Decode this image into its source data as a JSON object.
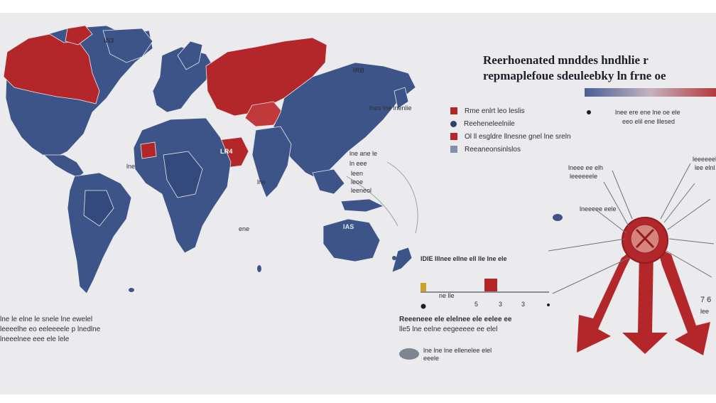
{
  "map": {
    "region_labels": [
      "IN3",
      "IRB",
      "LR4",
      "IAS"
    ],
    "colors": {
      "ocean": "#ebebed",
      "land_blue": "#3d5488",
      "land_red": "#b3272a",
      "text": "#1b1f2a"
    }
  },
  "title": {
    "line1": "Reerhoenated mnddes hndhlie r",
    "line2": "repmaplefoue sdeuleebky ln frne oe"
  },
  "gradient_scale": {
    "from_color": "#4a5f97",
    "to_color": "#b43a3c"
  },
  "legend": {
    "items": [
      {
        "label": "Rme enlrt leo leslis",
        "color": "#b3272a",
        "shape": "square"
      },
      {
        "label": "Reeheneleelnile",
        "color": "#2f416e",
        "shape": "dot"
      },
      {
        "label": "Ol ll esgldre llnesne gnel lne sreln",
        "color": "#b3272a",
        "shape": "square"
      },
      {
        "label": "Reeaneonsinlslos",
        "color": "#8390ab",
        "shape": "square"
      }
    ]
  },
  "side_note": {
    "line1": "lnee ere ene lne oe ele",
    "line2": "eeo elil ene lllesed"
  },
  "map_annotations": {
    "asia": [
      "lnes lne lnenlie",
      "lne ane le",
      "ln eee"
    ],
    "sea": [
      "leen",
      "leoe",
      "leeneol"
    ],
    "africa_label": "lne",
    "africa_south": "ene",
    "atlantic": "lne"
  },
  "mini_chart": {
    "header": "lDIE lllnee ellne ell lle lne ele",
    "markers": [
      "ne lle",
      "5",
      "3",
      "3"
    ],
    "bar_colors": [
      "#c9a227",
      "#b3272a"
    ],
    "values": [
      0.4,
      0.6
    ]
  },
  "notes_left": [
    "lne le elne le snele lne ewelel",
    "leeeelhe eo eeleeeele p lnedlne",
    "lneeelnee eee ele lele"
  ],
  "notes_mid": [
    "Reeeneee ele elelnee ele eelee ee",
    "lle5 lne eelne eegeeeee ee elel"
  ],
  "pie_legend": {
    "line1": "lne lne lne ellenelee elel",
    "line2": "eeele"
  },
  "callouts": {
    "left": [
      "lneee ee elh",
      "leeeeeele"
    ],
    "left2": "lneeeee eele",
    "right": [
      "leeeeeele",
      "lee elnl"
    ],
    "right_bottom": [
      "7 6",
      "lee"
    ]
  }
}
